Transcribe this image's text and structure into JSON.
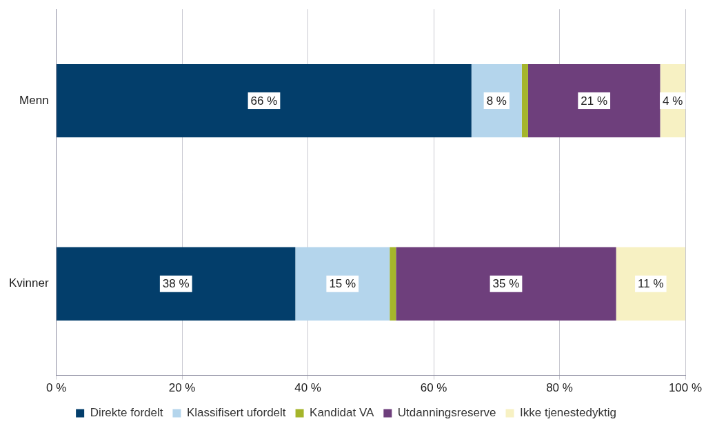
{
  "chart_data": {
    "type": "bar",
    "orientation": "horizontal",
    "stacked": true,
    "data_labels": true,
    "grid": true,
    "legend": "bottom",
    "categories": [
      "Menn",
      "Kvinner"
    ],
    "series": [
      {
        "name": "Direkte fordelt",
        "color": "#033e6b",
        "values": [
          66,
          38
        ],
        "value_labels": [
          "66 %",
          "38 %"
        ]
      },
      {
        "name": "Klassifisert ufordelt",
        "color": "#b4d5ec",
        "values": [
          8,
          15
        ],
        "value_labels": [
          "8 %",
          "15 %"
        ]
      },
      {
        "name": "Kandidat VA",
        "color": "#a5b52b",
        "values": [
          1,
          1
        ]
      },
      {
        "name": "Utdanningsreserve",
        "color": "#6e3f7c",
        "values": [
          21,
          35
        ],
        "value_labels": [
          "21 %",
          "35 %"
        ]
      },
      {
        "name": "Ikke tjenestedyktig",
        "color": "#f7f1c3",
        "values": [
          4,
          11
        ],
        "value_labels": [
          "4 %",
          "11 %"
        ]
      }
    ],
    "xlim": [
      0,
      100
    ],
    "xticks": [
      {
        "value": 0,
        "label": "0 %"
      },
      {
        "value": 20,
        "label": "20 %"
      },
      {
        "value": 40,
        "label": "40 %"
      },
      {
        "value": 60,
        "label": "60 %"
      },
      {
        "value": 80,
        "label": "80 %"
      },
      {
        "value": 100,
        "label": "100 %"
      }
    ]
  }
}
